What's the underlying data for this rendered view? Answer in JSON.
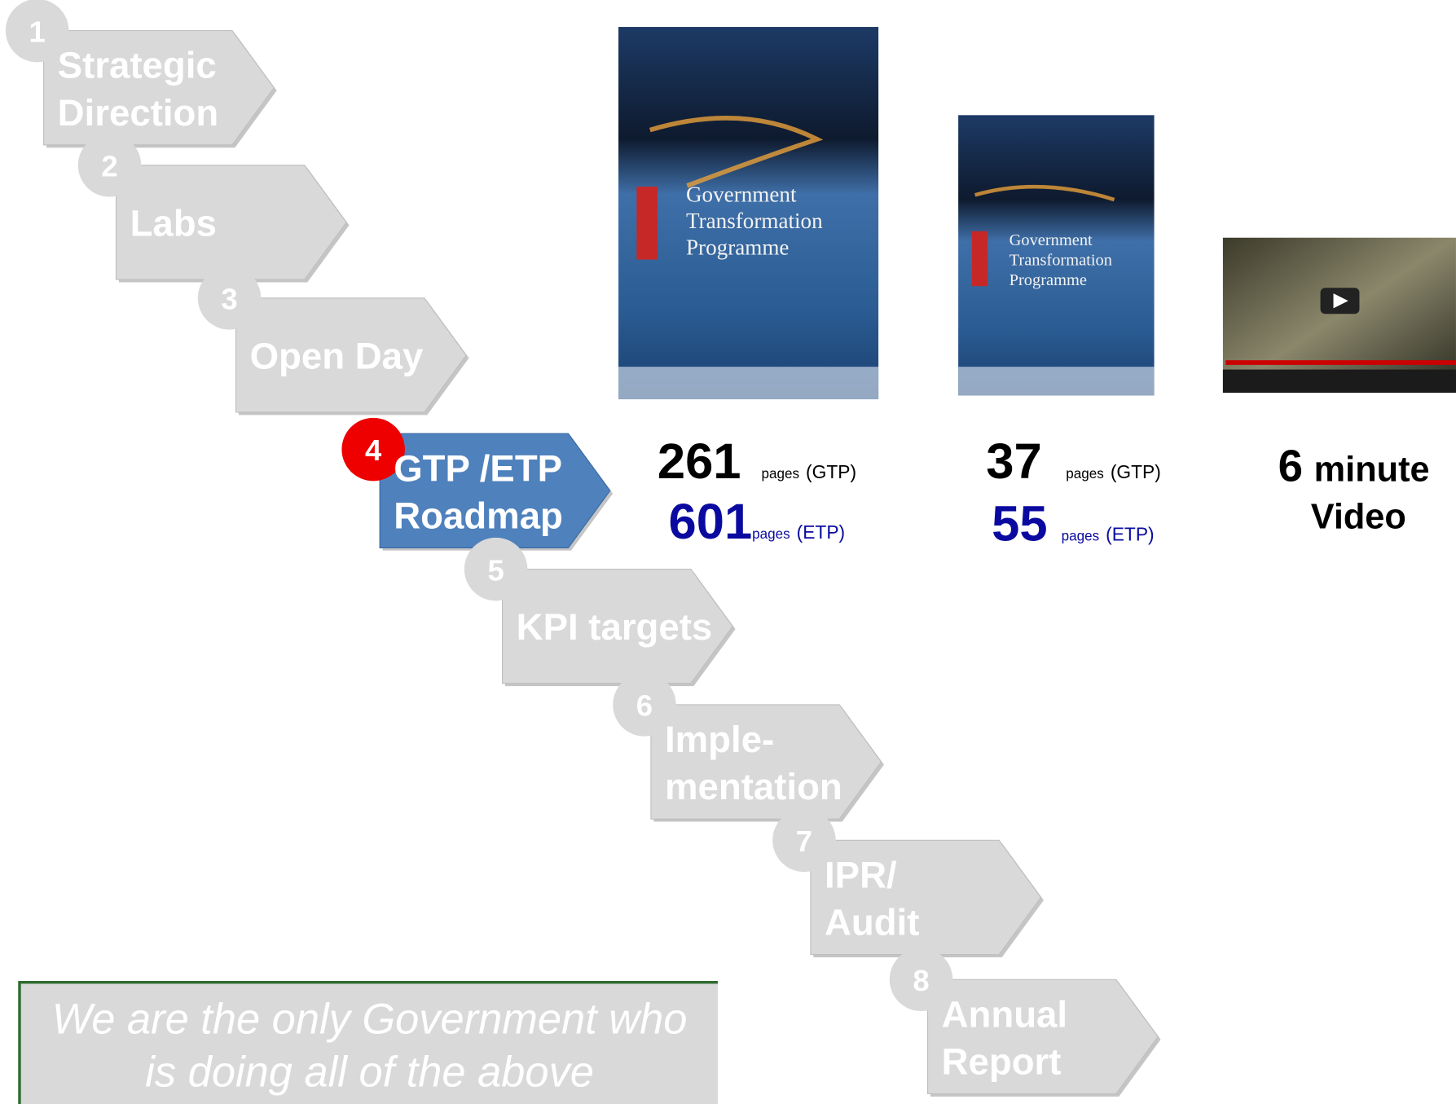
{
  "steps": [
    {
      "number": "1",
      "lines": [
        "Strategic",
        "Direction"
      ]
    },
    {
      "number": "2",
      "lines": [
        "Labs"
      ]
    },
    {
      "number": "3",
      "lines": [
        "Open Day"
      ]
    },
    {
      "number": "4",
      "lines": [
        "GTP /ETP",
        "Roadmap"
      ]
    },
    {
      "number": "5",
      "lines": [
        "KPI targets"
      ]
    },
    {
      "number": "6",
      "lines": [
        "Imple-",
        "mentation"
      ]
    },
    {
      "number": "7",
      "lines": [
        "IPR/",
        "Audit"
      ]
    },
    {
      "number": "8",
      "lines": [
        "Annual",
        "Report"
      ]
    }
  ],
  "books": [
    {
      "cover_lines": [
        "Government",
        "Transformation",
        "Programme"
      ],
      "gtp_count": "261",
      "etp_count": "601",
      "unit": "pages",
      "gtp_tag": "(GTP)",
      "etp_tag": "(ETP)"
    },
    {
      "cover_lines": [
        "Government",
        "Transformation",
        "Programme"
      ],
      "gtp_count": "37",
      "etp_count": "55",
      "unit": "pages",
      "gtp_tag": "(GTP)",
      "etp_tag": "(ETP)"
    }
  ],
  "video": {
    "number": "6",
    "unit": "minute",
    "label": "Video"
  },
  "note": {
    "lines": [
      "We are the only Government who",
      "is doing all of the above"
    ]
  }
}
